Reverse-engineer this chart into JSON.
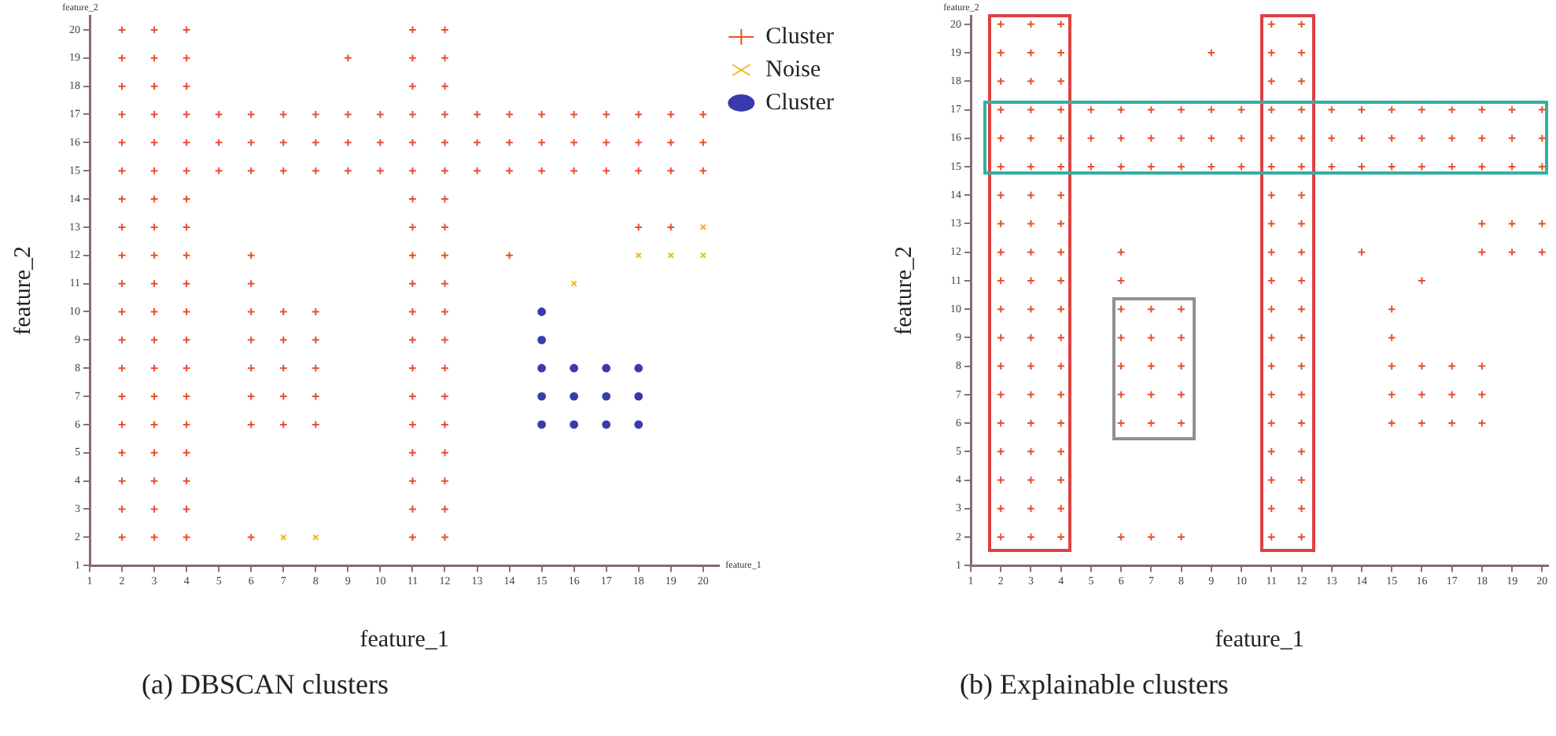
{
  "chart_data": [
    {
      "type": "scatter",
      "title": "(a)  DBSCAN clusters",
      "xlabel": "feature_1",
      "ylabel": "feature_2",
      "annotations": [
        "feature_2",
        "feature_1"
      ],
      "xlim": [
        1,
        20.5
      ],
      "ylim": [
        1,
        20.5
      ],
      "xticks": [
        1,
        2,
        3,
        4,
        5,
        6,
        7,
        8,
        9,
        10,
        11,
        12,
        13,
        14,
        15,
        16,
        17,
        18,
        19,
        20
      ],
      "yticks": [
        1,
        2,
        3,
        4,
        5,
        6,
        7,
        8,
        9,
        10,
        11,
        12,
        13,
        14,
        15,
        16,
        17,
        18,
        19,
        20
      ],
      "grid": false,
      "legend": "top right",
      "series": [
        {
          "name": "Cluster",
          "color": "#e8502a",
          "marker": "cross",
          "x": [
            2,
            2,
            2,
            2,
            2,
            2,
            2,
            2,
            2,
            2,
            2,
            2,
            2,
            2,
            2,
            2,
            2,
            2,
            2,
            3,
            3,
            3,
            3,
            3,
            3,
            3,
            3,
            3,
            3,
            3,
            3,
            3,
            3,
            3,
            3,
            3,
            3,
            3,
            4,
            4,
            4,
            4,
            4,
            4,
            4,
            4,
            4,
            4,
            4,
            4,
            4,
            4,
            4,
            4,
            4,
            4,
            4,
            5,
            5,
            5,
            6,
            6,
            6,
            6,
            6,
            6,
            6,
            6,
            6,
            6,
            6,
            7,
            7,
            7,
            7,
            7,
            7,
            7,
            7,
            8,
            8,
            8,
            8,
            8,
            8,
            8,
            8,
            9,
            9,
            9,
            9,
            10,
            10,
            10,
            11,
            11,
            11,
            11,
            11,
            11,
            11,
            11,
            11,
            11,
            11,
            11,
            11,
            11,
            11,
            11,
            11,
            11,
            11,
            12,
            12,
            12,
            12,
            12,
            12,
            12,
            12,
            12,
            12,
            12,
            12,
            12,
            12,
            12,
            12,
            12,
            12,
            12,
            13,
            13,
            13,
            14,
            14,
            14,
            14,
            15,
            15,
            15,
            16,
            16,
            16,
            17,
            17,
            17,
            18,
            18,
            18,
            18,
            19,
            19,
            19,
            19,
            20,
            20,
            20
          ],
          "values": [
            2,
            3,
            4,
            5,
            6,
            7,
            8,
            9,
            10,
            11,
            12,
            13,
            14,
            15,
            16,
            17,
            18,
            19,
            20,
            2,
            3,
            4,
            5,
            6,
            7,
            8,
            9,
            10,
            11,
            12,
            13,
            14,
            15,
            16,
            17,
            18,
            19,
            20,
            2,
            3,
            4,
            5,
            6,
            7,
            8,
            9,
            10,
            11,
            12,
            13,
            14,
            15,
            16,
            17,
            18,
            19,
            20,
            15,
            16,
            17,
            2,
            6,
            7,
            8,
            9,
            10,
            11,
            12,
            15,
            16,
            17,
            6,
            7,
            8,
            9,
            10,
            15,
            16,
            17,
            6,
            7,
            8,
            9,
            10,
            15,
            16,
            17,
            15,
            16,
            17,
            19,
            15,
            16,
            17,
            2,
            3,
            4,
            5,
            6,
            7,
            8,
            9,
            10,
            11,
            12,
            13,
            14,
            15,
            16,
            17,
            18,
            19,
            20,
            2,
            3,
            4,
            5,
            6,
            7,
            8,
            9,
            10,
            11,
            12,
            13,
            14,
            15,
            16,
            17,
            18,
            19,
            20,
            15,
            16,
            17,
            12,
            15,
            16,
            17,
            15,
            16,
            17,
            15,
            16,
            17,
            15,
            16,
            17,
            13,
            15,
            16,
            17,
            13,
            15,
            16,
            17,
            15,
            16,
            17
          ]
        },
        {
          "name": "Noise",
          "color": "#f2b81c",
          "marker": "x",
          "x": [
            7,
            8,
            16,
            18,
            19,
            20,
            20
          ],
          "values": [
            2,
            2,
            11,
            12,
            12,
            12,
            13
          ]
        },
        {
          "name": "Cluster",
          "color": "#3a3ab0",
          "marker": "circle",
          "x": [
            15,
            15,
            15,
            16,
            17,
            18,
            15,
            16,
            17,
            18,
            15,
            16,
            17,
            18
          ],
          "values": [
            10,
            9,
            8,
            8,
            8,
            8,
            7,
            7,
            7,
            7,
            6,
            6,
            6,
            6
          ]
        }
      ]
    },
    {
      "type": "scatter",
      "title": "(b)  Explainable clusters",
      "xlabel": "feature_1",
      "ylabel": "feature_2",
      "annotations": [
        "feature_2"
      ],
      "xlim": [
        1,
        20.2
      ],
      "ylim": [
        1,
        20.3
      ],
      "xticks": [
        1,
        2,
        3,
        4,
        5,
        6,
        7,
        8,
        9,
        10,
        11,
        12,
        13,
        14,
        15,
        16,
        17,
        18,
        19,
        20
      ],
      "yticks": [
        1,
        2,
        3,
        4,
        5,
        6,
        7,
        8,
        9,
        10,
        11,
        12,
        13,
        14,
        15,
        16,
        17,
        18,
        19,
        20
      ],
      "grid": false,
      "series": [
        {
          "color": "#e8502a",
          "marker": "cross",
          "x": [
            2,
            2,
            2,
            2,
            2,
            2,
            2,
            2,
            2,
            2,
            2,
            2,
            2,
            2,
            2,
            2,
            2,
            2,
            2,
            3,
            3,
            3,
            3,
            3,
            3,
            3,
            3,
            3,
            3,
            3,
            3,
            3,
            3,
            3,
            3,
            3,
            3,
            3,
            4,
            4,
            4,
            4,
            4,
            4,
            4,
            4,
            4,
            4,
            4,
            4,
            4,
            4,
            4,
            4,
            4,
            4,
            4,
            5,
            5,
            5,
            6,
            6,
            6,
            6,
            6,
            6,
            6,
            6,
            6,
            6,
            6,
            7,
            7,
            7,
            7,
            7,
            7,
            7,
            7,
            7,
            8,
            8,
            8,
            8,
            8,
            8,
            8,
            8,
            8,
            9,
            9,
            9,
            9,
            10,
            10,
            10,
            11,
            11,
            11,
            11,
            11,
            11,
            11,
            11,
            11,
            11,
            11,
            11,
            11,
            11,
            11,
            11,
            11,
            11,
            11,
            12,
            12,
            12,
            12,
            12,
            12,
            12,
            12,
            12,
            12,
            12,
            12,
            12,
            12,
            12,
            12,
            12,
            12,
            12,
            13,
            13,
            13,
            14,
            14,
            14,
            14,
            15,
            15,
            15,
            15,
            15,
            15,
            15,
            15,
            16,
            16,
            16,
            16,
            16,
            16,
            16,
            17,
            17,
            17,
            17,
            17,
            17,
            18,
            18,
            18,
            18,
            18,
            18,
            18,
            18,
            19,
            19,
            19,
            19,
            19,
            20,
            20,
            20,
            20,
            20
          ],
          "values": [
            2,
            3,
            4,
            5,
            6,
            7,
            8,
            9,
            10,
            11,
            12,
            13,
            14,
            15,
            16,
            17,
            18,
            19,
            20,
            2,
            3,
            4,
            5,
            6,
            7,
            8,
            9,
            10,
            11,
            12,
            13,
            14,
            15,
            16,
            17,
            18,
            19,
            20,
            2,
            3,
            4,
            5,
            6,
            7,
            8,
            9,
            10,
            11,
            12,
            13,
            14,
            15,
            16,
            17,
            18,
            19,
            20,
            15,
            16,
            17,
            2,
            6,
            7,
            8,
            9,
            10,
            11,
            12,
            15,
            16,
            17,
            2,
            6,
            7,
            8,
            9,
            10,
            15,
            16,
            17,
            2,
            6,
            7,
            8,
            9,
            10,
            15,
            16,
            17,
            15,
            16,
            17,
            19,
            15,
            16,
            17,
            2,
            3,
            4,
            5,
            6,
            7,
            8,
            9,
            10,
            11,
            12,
            13,
            14,
            15,
            16,
            17,
            18,
            19,
            20,
            2,
            3,
            4,
            5,
            6,
            7,
            8,
            9,
            10,
            11,
            12,
            13,
            14,
            15,
            16,
            17,
            18,
            19,
            20,
            15,
            16,
            17,
            12,
            15,
            16,
            17,
            6,
            7,
            8,
            9,
            10,
            15,
            16,
            17,
            6,
            7,
            8,
            11,
            15,
            16,
            17,
            6,
            7,
            8,
            15,
            16,
            17,
            6,
            7,
            8,
            12,
            13,
            15,
            16,
            17,
            12,
            13,
            15,
            16,
            17,
            12,
            13,
            15,
            16,
            17
          ]
        }
      ]
    }
  ]
}
